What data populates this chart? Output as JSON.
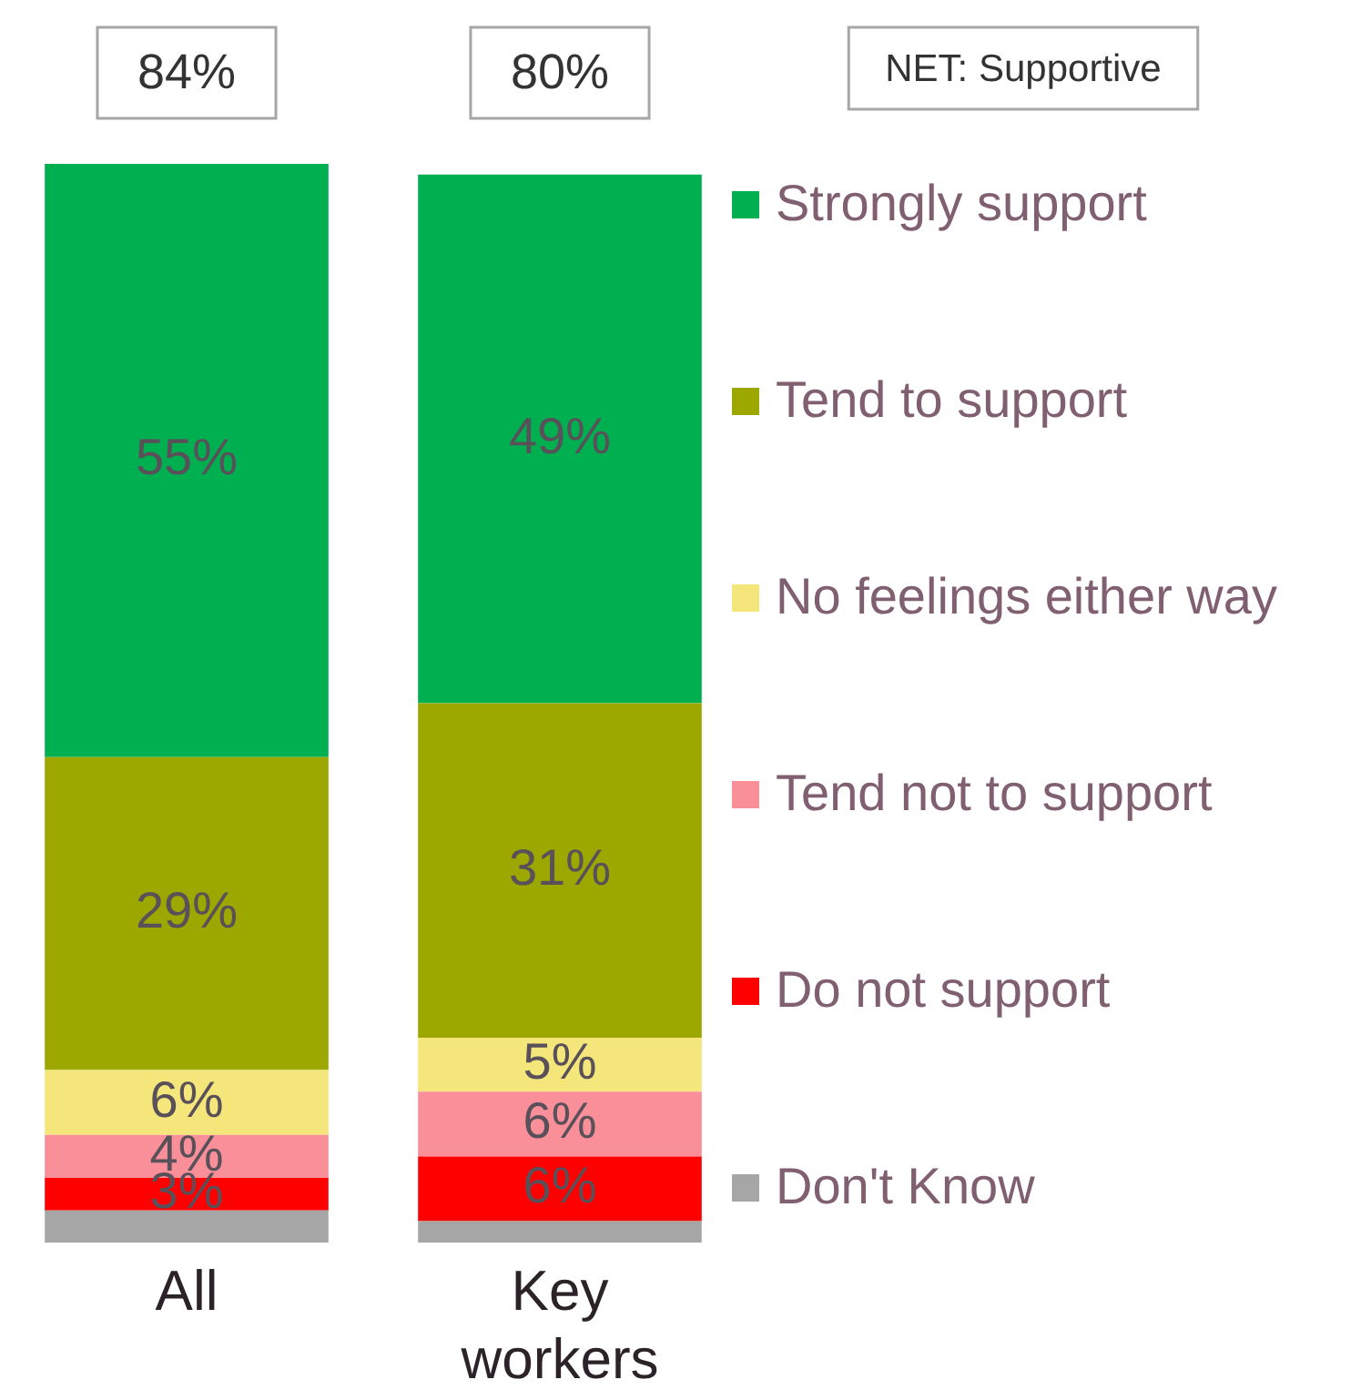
{
  "chart_data": {
    "type": "bar",
    "stacked": true,
    "categories": [
      "All",
      "Key workers"
    ],
    "legend": "right",
    "series": [
      {
        "name": "Don't Know",
        "color": "#a6a6a6",
        "values": [
          3,
          2
        ],
        "value_labels": [
          null,
          null
        ]
      },
      {
        "name": "Do not support",
        "color": "#ff0000",
        "values": [
          3,
          6
        ],
        "value_labels": [
          "3%",
          "6%"
        ]
      },
      {
        "name": "Tend not to support",
        "color": "#f98f99",
        "values": [
          4,
          6
        ],
        "value_labels": [
          "4%",
          "6%"
        ]
      },
      {
        "name": "No feelings either way",
        "color": "#f4e67a",
        "values": [
          6,
          5
        ],
        "value_labels": [
          "6%",
          "5%"
        ]
      },
      {
        "name": "Tend to support",
        "color": "#9ca700",
        "values": [
          29,
          31
        ],
        "value_labels": [
          "29%",
          "31%"
        ]
      },
      {
        "name": "Strongly support",
        "color": "#00b050",
        "values": [
          55,
          49
        ],
        "value_labels": [
          "55%",
          "49%"
        ]
      }
    ],
    "annotations": [
      "84%",
      "80%",
      "NET: Supportive"
    ]
  }
}
